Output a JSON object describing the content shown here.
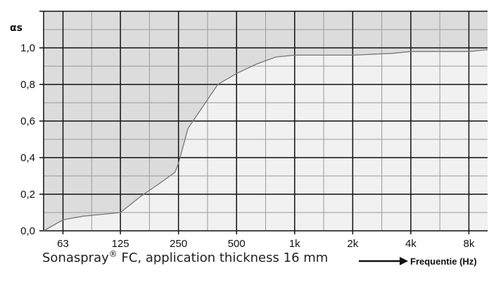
{
  "chart_data": {
    "type": "area",
    "ylabel": "αs",
    "xlabel": "Frequentie (Hz)",
    "x_scale": "log",
    "xlim": [
      50,
      10000
    ],
    "ylim": [
      0,
      1.2
    ],
    "grid": true,
    "x_ticks": [
      {
        "value": 63,
        "label": "63"
      },
      {
        "value": 125,
        "label": "125"
      },
      {
        "value": 250,
        "label": "250"
      },
      {
        "value": 500,
        "label": "500"
      },
      {
        "value": 1000,
        "label": "1k"
      },
      {
        "value": 2000,
        "label": "2k"
      },
      {
        "value": 4000,
        "label": "4k"
      },
      {
        "value": 8000,
        "label": "8k"
      }
    ],
    "y_ticks": [
      {
        "value": 0.0,
        "label": "0,0"
      },
      {
        "value": 0.2,
        "label": "0,2"
      },
      {
        "value": 0.4,
        "label": "0,4"
      },
      {
        "value": 0.6,
        "label": "0,6"
      },
      {
        "value": 0.8,
        "label": "0,8"
      },
      {
        "value": 1.0,
        "label": "1,0"
      }
    ],
    "series": [
      {
        "x": [
          50,
          63,
          80,
          100,
          125,
          160,
          200,
          240,
          250,
          280,
          320,
          400,
          500,
          630,
          800,
          1000,
          1600,
          2000,
          3200,
          4000,
          6300,
          8000,
          10000
        ],
        "y": [
          0.0,
          0.06,
          0.08,
          0.09,
          0.1,
          0.19,
          0.26,
          0.32,
          0.37,
          0.56,
          0.65,
          0.8,
          0.86,
          0.91,
          0.95,
          0.96,
          0.96,
          0.96,
          0.97,
          0.98,
          0.98,
          0.98,
          0.99
        ]
      }
    ],
    "colors": {
      "fill_below": "#f1f1f1",
      "fill_above": "#dcdcdc",
      "grid_major": "#111111",
      "grid_minor": "#9a9a9a",
      "line": "#777777"
    }
  },
  "caption": {
    "product": "Sonaspray",
    "trademark": "®",
    "text": " FC, application thickness 16 mm"
  }
}
